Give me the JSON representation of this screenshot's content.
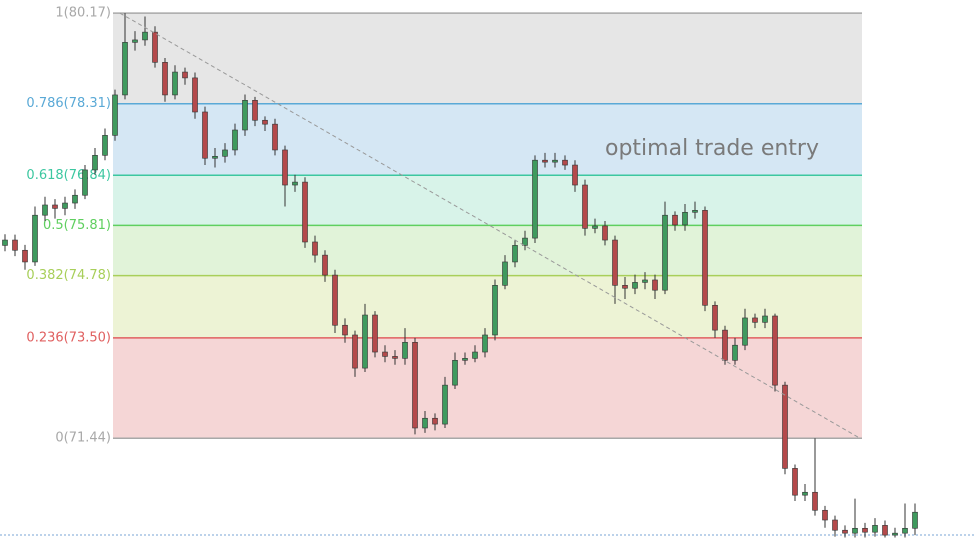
{
  "chart_data": {
    "type": "candlestick",
    "annotation": "optimal trade entry",
    "ylim": [
      69.37,
      80.44
    ],
    "up_color": "#3f9a5e",
    "down_color": "#b4494b",
    "fib_levels": [
      {
        "label": "1(80.17)",
        "value": 80.17,
        "line_color": "#a8a8a8",
        "fill_color": "#e6e6e6"
      },
      {
        "label": "0.786(78.31)",
        "value": 78.31,
        "line_color": "#5aa9d6",
        "fill_color": "#d5e7f4"
      },
      {
        "label": "0.618(76.84)",
        "value": 76.84,
        "line_color": "#3cc7a0",
        "fill_color": "#d8f3e9"
      },
      {
        "label": "0.5(75.81)",
        "value": 75.81,
        "line_color": "#5fcf5f",
        "fill_color": "#e1f3d9"
      },
      {
        "label": "0.382(74.78)",
        "value": 74.78,
        "line_color": "#a8cf5a",
        "fill_color": "#edf3d5"
      },
      {
        "label": "0.236(73.50)",
        "value": 73.5,
        "line_color": "#e06060",
        "fill_color": "#f5d6d6"
      },
      {
        "label": "0(71.44)",
        "value": 71.44,
        "line_color": "#a8a8a8"
      }
    ],
    "open": [
      75.4,
      75.51,
      75.3,
      75.06,
      76.02,
      76.23,
      76.16,
      76.27,
      76.43,
      76.95,
      77.25,
      77.66,
      78.49,
      79.57,
      79.62,
      79.78,
      79.16,
      78.49,
      78.96,
      78.84,
      78.14,
      77.19,
      77.23,
      77.36,
      77.77,
      78.38,
      77.97,
      77.89,
      77.36,
      76.64,
      76.7,
      75.47,
      75.2,
      74.79,
      73.76,
      73.56,
      72.88,
      73.97,
      73.21,
      73.12,
      73.08,
      73.41,
      71.65,
      71.85,
      71.73,
      72.53,
      73.04,
      73.08,
      73.21,
      73.56,
      74.58,
      75.06,
      75.4,
      75.55,
      77.15,
      77.11,
      77.15,
      77.05,
      76.64,
      75.75,
      75.8,
      75.51,
      74.58,
      74.52,
      74.64,
      74.69,
      74.48,
      76.02,
      75.82,
      76.08,
      76.12,
      74.17,
      73.66,
      73.04,
      73.35,
      73.91,
      73.82,
      73.95,
      72.53,
      70.82,
      70.27,
      70.33,
      69.96,
      69.76,
      69.55,
      69.49,
      69.59,
      69.51,
      69.65,
      69.45,
      69.49,
      69.59
    ],
    "high": [
      75.63,
      75.62,
      75.41,
      76.2,
      76.4,
      76.35,
      76.4,
      76.55,
      77.05,
      77.4,
      77.8,
      78.6,
      80.17,
      79.8,
      80.1,
      79.9,
      79.25,
      79.1,
      79.05,
      78.95,
      78.25,
      77.4,
      77.5,
      77.9,
      78.5,
      78.45,
      78.05,
      78.0,
      77.45,
      76.85,
      76.8,
      75.6,
      75.3,
      74.9,
      73.9,
      73.65,
      74.2,
      74.05,
      73.35,
      73.25,
      73.7,
      73.5,
      72.0,
      71.95,
      72.7,
      73.2,
      73.2,
      73.35,
      73.7,
      74.7,
      75.2,
      75.5,
      75.7,
      77.25,
      77.3,
      77.3,
      77.25,
      77.15,
      76.75,
      75.95,
      75.9,
      75.6,
      74.75,
      74.8,
      74.85,
      74.8,
      76.3,
      76.1,
      76.25,
      76.3,
      76.2,
      74.25,
      73.75,
      73.5,
      74.1,
      74.0,
      74.1,
      74.0,
      72.6,
      70.9,
      70.5,
      71.44,
      70.05,
      69.85,
      69.65,
      70.2,
      69.7,
      69.8,
      69.75,
      69.6,
      70.1,
      70.1
    ],
    "low": [
      75.28,
      75.18,
      74.9,
      74.98,
      75.9,
      75.95,
      76.02,
      76.15,
      76.35,
      76.85,
      77.15,
      77.55,
      78.4,
      79.4,
      79.5,
      79.05,
      78.35,
      78.4,
      78.7,
      78.0,
      77.05,
      77.0,
      77.1,
      77.25,
      77.65,
      77.85,
      77.75,
      77.25,
      76.2,
      76.5,
      75.35,
      75.05,
      74.65,
      73.6,
      73.4,
      72.7,
      72.8,
      73.1,
      73.0,
      72.95,
      72.95,
      71.52,
      71.55,
      71.6,
      71.65,
      72.45,
      72.95,
      73.0,
      73.1,
      73.45,
      74.5,
      74.95,
      75.3,
      75.45,
      77.0,
      77.0,
      76.95,
      76.5,
      75.6,
      75.65,
      75.4,
      74.2,
      74.3,
      74.4,
      74.5,
      74.3,
      74.4,
      75.7,
      75.7,
      75.95,
      74.05,
      73.5,
      72.95,
      72.95,
      73.25,
      73.7,
      73.7,
      72.4,
      70.7,
      70.15,
      70.15,
      69.85,
      69.6,
      69.42,
      69.4,
      69.4,
      69.4,
      69.42,
      69.4,
      69.4,
      69.4,
      69.45
    ],
    "close": [
      75.51,
      75.3,
      75.06,
      76.02,
      76.23,
      76.16,
      76.27,
      76.43,
      76.95,
      77.25,
      77.66,
      78.49,
      79.57,
      79.62,
      79.78,
      79.16,
      78.49,
      78.96,
      78.84,
      78.14,
      77.19,
      77.23,
      77.36,
      77.77,
      78.38,
      77.97,
      77.89,
      77.36,
      76.64,
      76.7,
      75.47,
      75.2,
      74.79,
      73.76,
      73.56,
      72.88,
      73.97,
      73.21,
      73.12,
      73.08,
      73.41,
      71.65,
      71.85,
      71.73,
      72.53,
      73.04,
      73.08,
      73.21,
      73.56,
      74.58,
      75.06,
      75.4,
      75.55,
      77.15,
      77.11,
      77.15,
      77.05,
      76.64,
      75.75,
      75.8,
      75.51,
      74.58,
      74.52,
      74.64,
      74.69,
      74.48,
      76.02,
      75.82,
      76.08,
      76.12,
      74.17,
      73.66,
      73.04,
      73.35,
      73.91,
      73.82,
      73.95,
      72.53,
      70.82,
      70.27,
      70.33,
      69.96,
      69.76,
      69.55,
      69.49,
      69.59,
      69.51,
      69.65,
      69.45,
      69.49,
      69.59,
      69.92
    ]
  }
}
